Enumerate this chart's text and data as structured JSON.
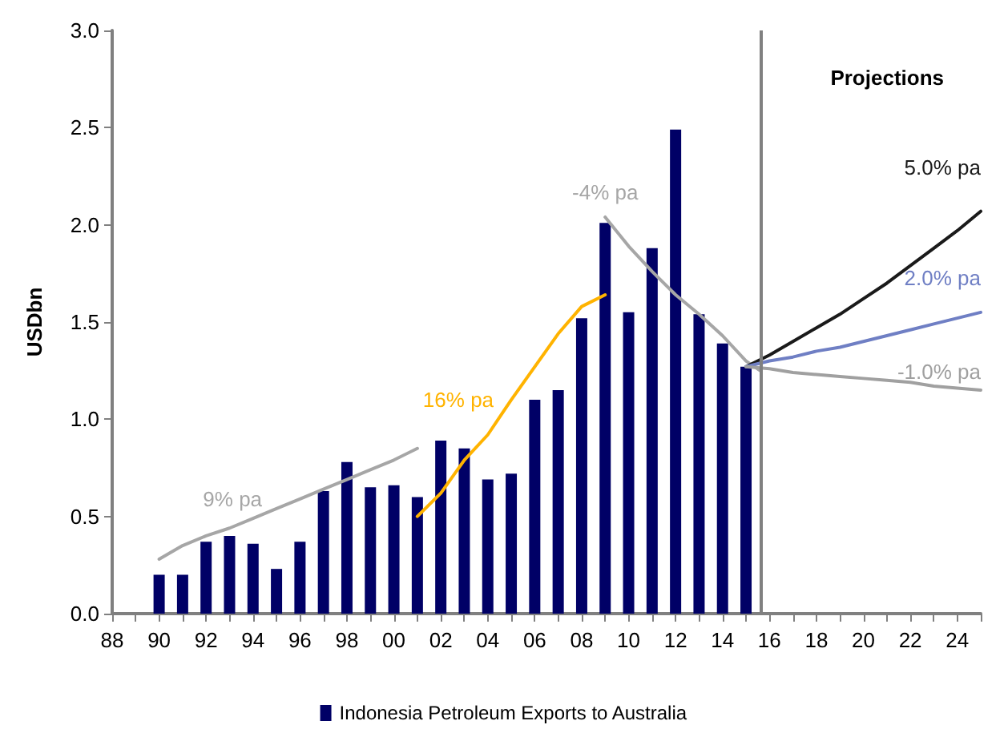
{
  "chart_data": {
    "type": "bar",
    "ylabel": "USDbn",
    "annotations": [
      "Projections"
    ],
    "xlim": [
      1988,
      2025
    ],
    "xticks": [
      {
        "value": 1988,
        "label": "88"
      },
      {
        "value": 1989,
        "label": null
      },
      {
        "value": 1990,
        "label": "90"
      },
      {
        "value": 1991,
        "label": null
      },
      {
        "value": 1992,
        "label": "92"
      },
      {
        "value": 1993,
        "label": null
      },
      {
        "value": 1994,
        "label": "94"
      },
      {
        "value": 1995,
        "label": null
      },
      {
        "value": 1996,
        "label": "96"
      },
      {
        "value": 1997,
        "label": null
      },
      {
        "value": 1998,
        "label": "98"
      },
      {
        "value": 1999,
        "label": null
      },
      {
        "value": 2000,
        "label": "00"
      },
      {
        "value": 2001,
        "label": null
      },
      {
        "value": 2002,
        "label": "02"
      },
      {
        "value": 2003,
        "label": null
      },
      {
        "value": 2004,
        "label": "04"
      },
      {
        "value": 2005,
        "label": null
      },
      {
        "value": 2006,
        "label": "06"
      },
      {
        "value": 2007,
        "label": null
      },
      {
        "value": 2008,
        "label": "08"
      },
      {
        "value": 2009,
        "label": null
      },
      {
        "value": 2010,
        "label": "10"
      },
      {
        "value": 2011,
        "label": null
      },
      {
        "value": 2012,
        "label": "12"
      },
      {
        "value": 2013,
        "label": null
      },
      {
        "value": 2014,
        "label": "14"
      },
      {
        "value": 2015,
        "label": null
      },
      {
        "value": 2016,
        "label": "16"
      },
      {
        "value": 2017,
        "label": null
      },
      {
        "value": 2018,
        "label": "18"
      },
      {
        "value": 2019,
        "label": null
      },
      {
        "value": 2020,
        "label": "20"
      },
      {
        "value": 2021,
        "label": null
      },
      {
        "value": 2022,
        "label": "22"
      },
      {
        "value": 2023,
        "label": null
      },
      {
        "value": 2024,
        "label": "24"
      },
      {
        "value": 2025,
        "label": null
      }
    ],
    "ylim": [
      0,
      3
    ],
    "yticks": [
      {
        "value": 0,
        "label": "0.0"
      },
      0.5,
      {
        "value": 1,
        "label": "1.0"
      },
      1.5,
      {
        "value": 2,
        "label": "2.0"
      },
      2.5,
      {
        "value": 3,
        "label": "3.0"
      }
    ],
    "grid": false,
    "legend": "bottom",
    "ref_lines": [
      {
        "axis": "x",
        "value": 2015.6,
        "color": "#808080"
      }
    ],
    "series": [
      {
        "name": "Indonesia Petroleum Exports to Australia",
        "color": "#000066",
        "x": [
          1990,
          1991,
          1992,
          1993,
          1994,
          1995,
          1996,
          1997,
          1998,
          1999,
          2000,
          2001,
          2002,
          2003,
          2004,
          2005,
          2006,
          2007,
          2008,
          2009,
          2010,
          2011,
          2012,
          2013,
          2014,
          2015
        ],
        "values": [
          0.2,
          0.2,
          0.37,
          0.4,
          0.36,
          0.23,
          0.37,
          0.63,
          0.78,
          0.65,
          0.66,
          0.6,
          0.89,
          0.85,
          0.69,
          0.72,
          1.1,
          1.15,
          1.52,
          2.01,
          1.55,
          1.88,
          2.49,
          1.54,
          1.39,
          1.27
        ]
      },
      {
        "type": "line",
        "name": "9% pa",
        "color": "#a6a6a6",
        "x": [
          1990,
          1991,
          1992,
          1993,
          1994,
          1995,
          1996,
          1997,
          1998,
          1999,
          2000,
          2001
        ],
        "values": [
          0.28,
          0.35,
          0.4,
          0.44,
          0.49,
          0.54,
          0.59,
          0.64,
          0.69,
          0.74,
          0.79,
          0.85
        ]
      },
      {
        "type": "line",
        "name": "16% pa",
        "color": "#ffb300",
        "x": [
          2001,
          2002,
          2003,
          2004,
          2005,
          2006,
          2007,
          2008,
          2009
        ],
        "values": [
          0.5,
          0.62,
          0.79,
          0.92,
          1.1,
          1.27,
          1.44,
          1.58,
          1.64
        ]
      },
      {
        "type": "line",
        "name": "-4% pa",
        "color": "#a6a6a6",
        "x": [
          2009,
          2010,
          2011,
          2012,
          2013,
          2014,
          2015,
          2015.6
        ],
        "values": [
          2.04,
          1.89,
          1.76,
          1.64,
          1.54,
          1.43,
          1.3,
          1.25
        ]
      },
      {
        "type": "line",
        "name": "5.0% pa",
        "color": "#1a1a1a",
        "x": [
          2015,
          2016,
          2017,
          2018,
          2019,
          2020,
          2021,
          2022,
          2023,
          2024,
          2025
        ],
        "values": [
          1.27,
          1.33,
          1.4,
          1.47,
          1.54,
          1.62,
          1.7,
          1.79,
          1.88,
          1.97,
          2.07
        ]
      },
      {
        "type": "line",
        "name": "2.0% pa",
        "color": "#6f7fc4",
        "x": [
          2015,
          2016,
          2017,
          2018,
          2019,
          2020,
          2021,
          2022,
          2023,
          2024,
          2025
        ],
        "values": [
          1.27,
          1.3,
          1.32,
          1.35,
          1.37,
          1.4,
          1.43,
          1.46,
          1.49,
          1.52,
          1.55
        ]
      },
      {
        "type": "line",
        "name": "-1.0% pa",
        "color": "#a0a0a0",
        "x": [
          2015,
          2016,
          2017,
          2018,
          2019,
          2020,
          2021,
          2022,
          2023,
          2024,
          2025
        ],
        "values": [
          1.27,
          1.26,
          1.24,
          1.23,
          1.22,
          1.21,
          1.2,
          1.19,
          1.17,
          1.16,
          1.15
        ]
      }
    ]
  }
}
